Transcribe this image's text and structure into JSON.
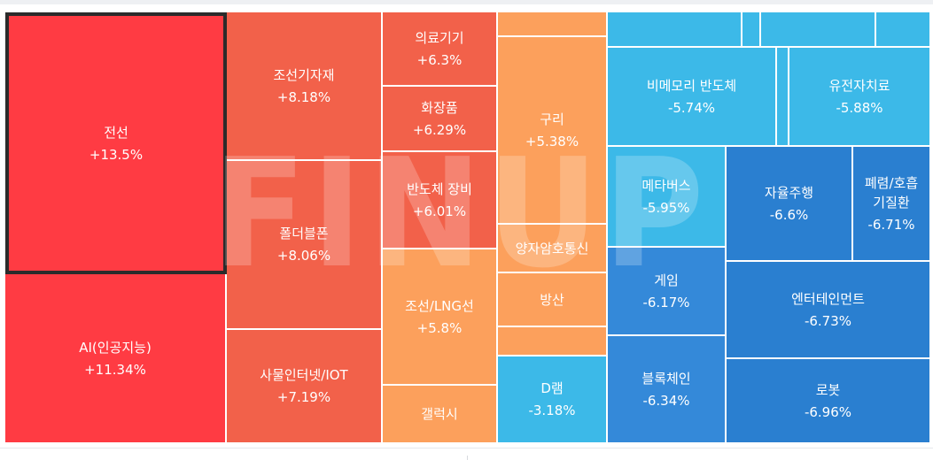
{
  "watermark": "FINUP",
  "colors": {
    "red_strong": "#ff3b43",
    "red": "#f2614a",
    "orange": "#fca05c",
    "sky": "#3cb9e8",
    "blue": "#3489d9",
    "blue_deep": "#2a7fd0"
  },
  "chart_data": {
    "type": "treemap",
    "tiles": [
      {
        "name": "전선",
        "change": "+13.5%",
        "value": 13.5,
        "color": "#ff3b43",
        "selected": true
      },
      {
        "name": "AI(인공지능)",
        "change": "+11.34%",
        "value": 11.34,
        "color": "#ff3b43"
      },
      {
        "name": "조선기자재",
        "change": "+8.18%",
        "value": 8.18,
        "color": "#f2614a"
      },
      {
        "name": "폴더블폰",
        "change": "+8.06%",
        "value": 8.06,
        "color": "#f2614a"
      },
      {
        "name": "사물인터넷/IOT",
        "change": "+7.19%",
        "value": 7.19,
        "color": "#f2614a"
      },
      {
        "name": "의료기기",
        "change": "+6.3%",
        "value": 6.3,
        "color": "#f2614a"
      },
      {
        "name": "화장품",
        "change": "+6.29%",
        "value": 6.29,
        "color": "#f2614a"
      },
      {
        "name": "반도체 장비",
        "change": "+6.01%",
        "value": 6.01,
        "color": "#f2614a"
      },
      {
        "name": "조선/LNG선",
        "change": "+5.8%",
        "value": 5.8,
        "color": "#fca05c"
      },
      {
        "name": "갤럭시",
        "change": "",
        "color": "#fca05c"
      },
      {
        "name": "",
        "change": "",
        "color": "#fca05c"
      },
      {
        "name": "구리",
        "change": "+5.38%",
        "value": 5.38,
        "color": "#fca05c"
      },
      {
        "name": "양자암호통신",
        "change": "",
        "color": "#fca05c"
      },
      {
        "name": "방산",
        "change": "",
        "color": "#fca05c"
      },
      {
        "name": "",
        "change": "",
        "color": "#fca05c"
      },
      {
        "name": "D램",
        "change": "-3.18%",
        "value": -3.18,
        "color": "#3cb9e8"
      },
      {
        "name": "",
        "change": "",
        "color": "#3cb9e8"
      },
      {
        "name": "",
        "change": "",
        "color": "#3cb9e8"
      },
      {
        "name": "",
        "change": "",
        "color": "#3cb9e8"
      },
      {
        "name": "",
        "change": "",
        "color": "#3cb9e8"
      },
      {
        "name": "비메모리 반도체",
        "change": "-5.74%",
        "value": -5.74,
        "color": "#3cb9e8"
      },
      {
        "name": "",
        "change": "",
        "color": "#3cb9e8"
      },
      {
        "name": "유전자치료",
        "change": "-5.88%",
        "value": -5.88,
        "color": "#3cb9e8"
      },
      {
        "name": "메타버스",
        "change": "-5.95%",
        "value": -5.95,
        "color": "#3cb9e8"
      },
      {
        "name": "자율주행",
        "change": "-6.6%",
        "value": -6.6,
        "color": "#2a7fd0"
      },
      {
        "name": "폐렴/호흡\n기질환",
        "change": "-6.71%",
        "value": -6.71,
        "color": "#2a7fd0"
      },
      {
        "name": "게임",
        "change": "-6.17%",
        "value": -6.17,
        "color": "#3489d9"
      },
      {
        "name": "엔터테인먼트",
        "change": "-6.73%",
        "value": -6.73,
        "color": "#2a7fd0"
      },
      {
        "name": "블록체인",
        "change": "-6.34%",
        "value": -6.34,
        "color": "#3489d9"
      },
      {
        "name": "로봇",
        "change": "-6.96%",
        "value": -6.96,
        "color": "#2a7fd0"
      }
    ]
  }
}
